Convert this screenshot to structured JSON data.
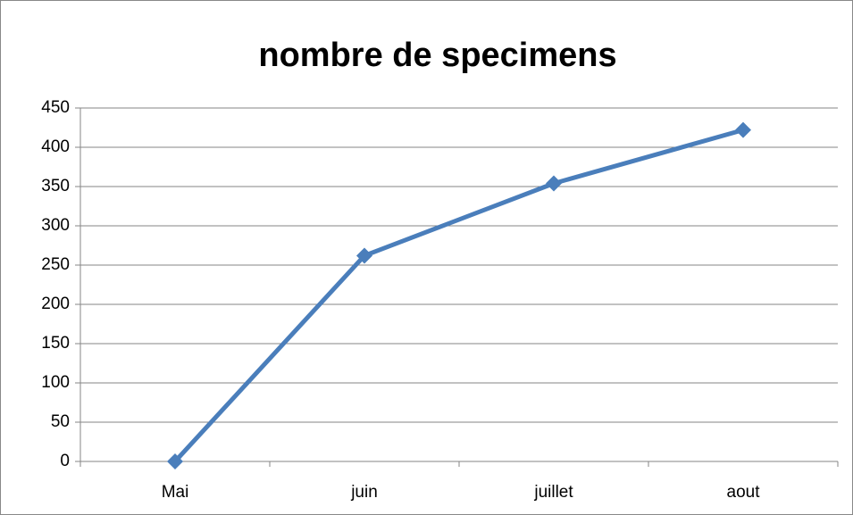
{
  "chart_data": {
    "type": "line",
    "title": "nombre de specimens",
    "categories": [
      "Mai",
      "juin",
      "juillet",
      "aout"
    ],
    "series": [
      {
        "name": "nombre de specimens",
        "color": "#4a7ebb",
        "values": [
          0,
          262,
          354,
          422
        ]
      }
    ],
    "ylim": [
      0,
      450
    ],
    "yticks": [
      0,
      50,
      100,
      150,
      200,
      250,
      300,
      350,
      400,
      450
    ],
    "grid": true
  }
}
